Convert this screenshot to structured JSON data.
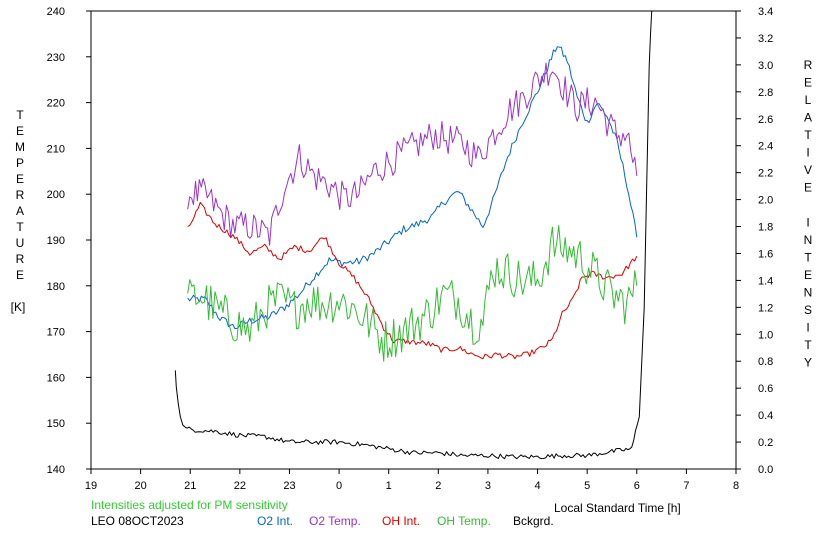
{
  "chart_data": {
    "type": "line",
    "left_axis_label": "TEMPERATURE",
    "left_axis_unit": "[K]",
    "right_axis_label": "RELATIVE INTENSITY",
    "xlabel": "Local Standard Time [h]",
    "note": "Intensities adjusted for PM sensitivity",
    "station": "LEO 08OCT2023",
    "xlim": [
      19,
      32
    ],
    "x_ticks": [
      19,
      20,
      21,
      22,
      23,
      24,
      25,
      26,
      27,
      28,
      29,
      30,
      31,
      32
    ],
    "x_tick_labels": [
      "19",
      "20",
      "21",
      "22",
      "23",
      "0",
      "1",
      "2",
      "3",
      "4",
      "5",
      "6",
      "7",
      "8"
    ],
    "ylim_left": [
      140,
      240
    ],
    "y_left_ticks": [
      140,
      150,
      160,
      170,
      180,
      190,
      200,
      210,
      220,
      230,
      240
    ],
    "ylim_right": [
      0.0,
      3.4
    ],
    "y_right_ticks": [
      "0.0",
      "0.2",
      "0.4",
      "0.6",
      "0.8",
      "1.0",
      "1.2",
      "1.4",
      "1.6",
      "1.8",
      "2.0",
      "2.2",
      "2.4",
      "2.6",
      "2.8",
      "3.0",
      "3.2",
      "3.4"
    ],
    "grid": false,
    "legend_placement": "bottom",
    "series": [
      {
        "name": "O2 Int.",
        "axis": "right",
        "color": "#0066cc",
        "noise": 0.03,
        "x": [
          20.95,
          21.3,
          21.6,
          21.9,
          22.2,
          22.6,
          22.9,
          23.2,
          23.5,
          23.8,
          24.1,
          24.4,
          24.7,
          25.0,
          25.3,
          25.6,
          25.9,
          26.1,
          26.4,
          26.6,
          26.9,
          27.1,
          27.4,
          27.7,
          28.0,
          28.2,
          28.4,
          28.6,
          28.8,
          29.0,
          29.2,
          29.4,
          29.6,
          29.8,
          30.0
        ],
        "y": [
          1.26,
          1.26,
          1.12,
          1.05,
          1.1,
          1.13,
          1.2,
          1.3,
          1.43,
          1.55,
          1.53,
          1.54,
          1.6,
          1.69,
          1.78,
          1.82,
          1.88,
          1.98,
          2.06,
          1.96,
          1.8,
          1.99,
          2.32,
          2.58,
          2.8,
          2.98,
          3.15,
          3.03,
          2.76,
          2.57,
          2.72,
          2.62,
          2.43,
          2.12,
          1.72
        ]
      },
      {
        "name": "O2 Temp.",
        "axis": "left",
        "color": "#9933cc",
        "noise": 3.5,
        "x": [
          20.95,
          21.3,
          21.6,
          21.9,
          22.2,
          22.6,
          22.9,
          23.2,
          23.5,
          23.8,
          24.1,
          24.4,
          24.7,
          25.0,
          25.3,
          25.6,
          25.9,
          26.2,
          26.5,
          26.8,
          27.1,
          27.4,
          27.7,
          28.0,
          28.3,
          28.6,
          28.8,
          29.0,
          29.2,
          29.4,
          29.6,
          29.8,
          30.0
        ],
        "y": [
          200,
          200,
          196,
          193,
          193,
          191,
          202,
          208,
          204,
          202,
          199,
          200,
          205,
          207,
          209,
          211,
          213,
          212,
          211,
          208,
          213,
          218,
          221,
          225,
          228,
          222,
          219,
          220,
          220,
          216,
          213,
          213,
          204
        ]
      },
      {
        "name": "OH Int.",
        "axis": "right",
        "color": "#dd0000",
        "noise": 0.022,
        "x": [
          20.95,
          21.2,
          21.5,
          21.9,
          22.2,
          22.5,
          22.8,
          23.1,
          23.4,
          23.7,
          24.0,
          24.3,
          24.6,
          24.9,
          25.1,
          25.3,
          25.8,
          26.1,
          26.4,
          26.7,
          26.9,
          27.2,
          27.5,
          27.8,
          28.1,
          28.3,
          28.5,
          28.7,
          28.9,
          29.1,
          29.4,
          29.7,
          30.0
        ],
        "y": [
          1.78,
          1.96,
          1.82,
          1.72,
          1.6,
          1.65,
          1.56,
          1.65,
          1.62,
          1.73,
          1.53,
          1.42,
          1.26,
          1.05,
          0.95,
          0.95,
          0.93,
          0.88,
          0.9,
          0.85,
          0.83,
          0.85,
          0.83,
          0.85,
          0.9,
          0.96,
          1.15,
          1.25,
          1.42,
          1.45,
          1.42,
          1.45,
          1.58
        ]
      },
      {
        "name": "OH Temp.",
        "axis": "left",
        "color": "#33bb33",
        "noise": 4.8,
        "x": [
          20.95,
          21.2,
          21.5,
          21.9,
          22.2,
          22.5,
          22.8,
          23.1,
          23.4,
          23.7,
          24.0,
          24.3,
          24.6,
          24.9,
          25.3,
          25.8,
          26.1,
          26.4,
          26.7,
          26.9,
          27.1,
          27.4,
          27.7,
          28.0,
          28.3,
          28.6,
          28.9,
          29.2,
          29.5,
          29.8,
          30.0
        ],
        "y": [
          177,
          178,
          175,
          172,
          170,
          175,
          177,
          175,
          177,
          176,
          177,
          175,
          172,
          168,
          170,
          174,
          178,
          177,
          172,
          172,
          184,
          183,
          181,
          181,
          189,
          188,
          186,
          182,
          178,
          176,
          180
        ]
      },
      {
        "name": "Bckgrd.",
        "axis": "right",
        "color": "#000000",
        "noise": 0.018,
        "x": [
          20.7,
          20.72,
          20.8,
          20.9,
          21.1,
          21.5,
          22.0,
          22.5,
          23.0,
          23.5,
          24.0,
          24.5,
          25.0,
          25.5,
          26.0,
          26.5,
          27.0,
          27.5,
          28.0,
          28.5,
          29.0,
          29.5,
          29.9,
          30.05,
          30.15,
          30.25,
          30.3
        ],
        "y": [
          0.74,
          0.62,
          0.38,
          0.3,
          0.29,
          0.28,
          0.25,
          0.24,
          0.2,
          0.2,
          0.2,
          0.18,
          0.15,
          0.12,
          0.12,
          0.1,
          0.1,
          0.09,
          0.09,
          0.1,
          0.1,
          0.13,
          0.15,
          0.4,
          1.2,
          3.0,
          3.4
        ]
      }
    ],
    "legend": [
      {
        "label": "O2 Int.",
        "color": "#0066cc"
      },
      {
        "label": "O2 Temp.",
        "color": "#9933cc"
      },
      {
        "label": "OH Int.",
        "color": "#dd0000"
      },
      {
        "label": "OH Temp.",
        "color": "#33bb33"
      },
      {
        "label": "Bckgrd.",
        "color": "#000000"
      }
    ]
  }
}
